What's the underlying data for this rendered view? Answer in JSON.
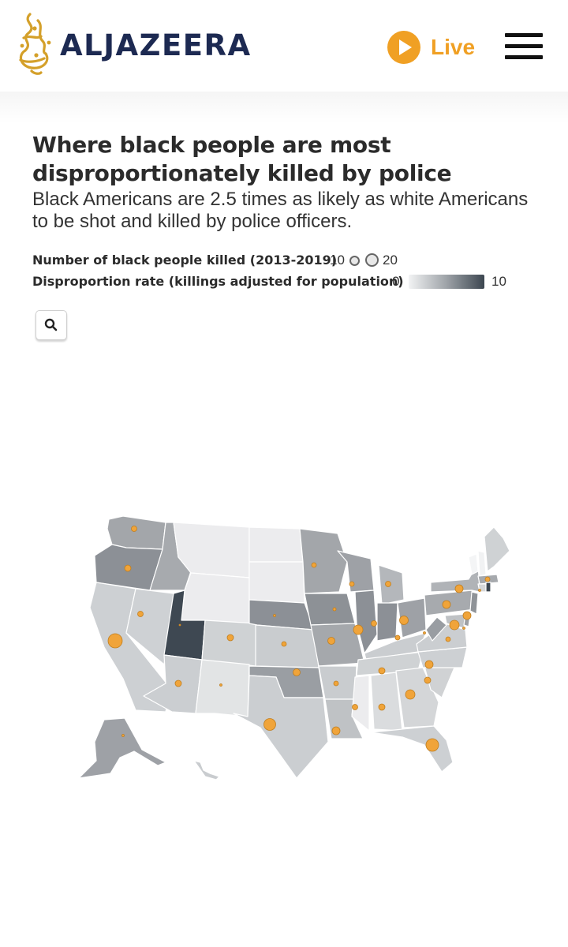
{
  "header": {
    "brand_name": "ALJAZEERA",
    "live_label": "Live",
    "icons": {
      "logo": "aljazeera-calligraphy-logo",
      "live": "play-icon",
      "menu": "hamburger-menu-icon"
    },
    "colors": {
      "brand_navy": "#1d2a52",
      "accent_gold": "#f0a024"
    }
  },
  "article": {
    "title": "Where black people are most disproportionately killed by police",
    "subtitle": "Black Americans are 2.5 times as likely as white Americans to be shot and killed by police officers."
  },
  "legend": {
    "size_label": "Number of black people killed (2013-2019)",
    "size_min": "10",
    "size_max": "20",
    "color_label": "Disproportion rate (killings adjusted for population)",
    "color_min": "0",
    "color_max": "10",
    "colors": {
      "low": "#f2f3f4",
      "mid": "#9ea3a8",
      "high": "#3c4650",
      "bubble": "#f0a43a"
    }
  },
  "controls": {
    "search_icon": "search-icon"
  },
  "map": {
    "type": "choropleth-bubble",
    "region": "United States"
  }
}
